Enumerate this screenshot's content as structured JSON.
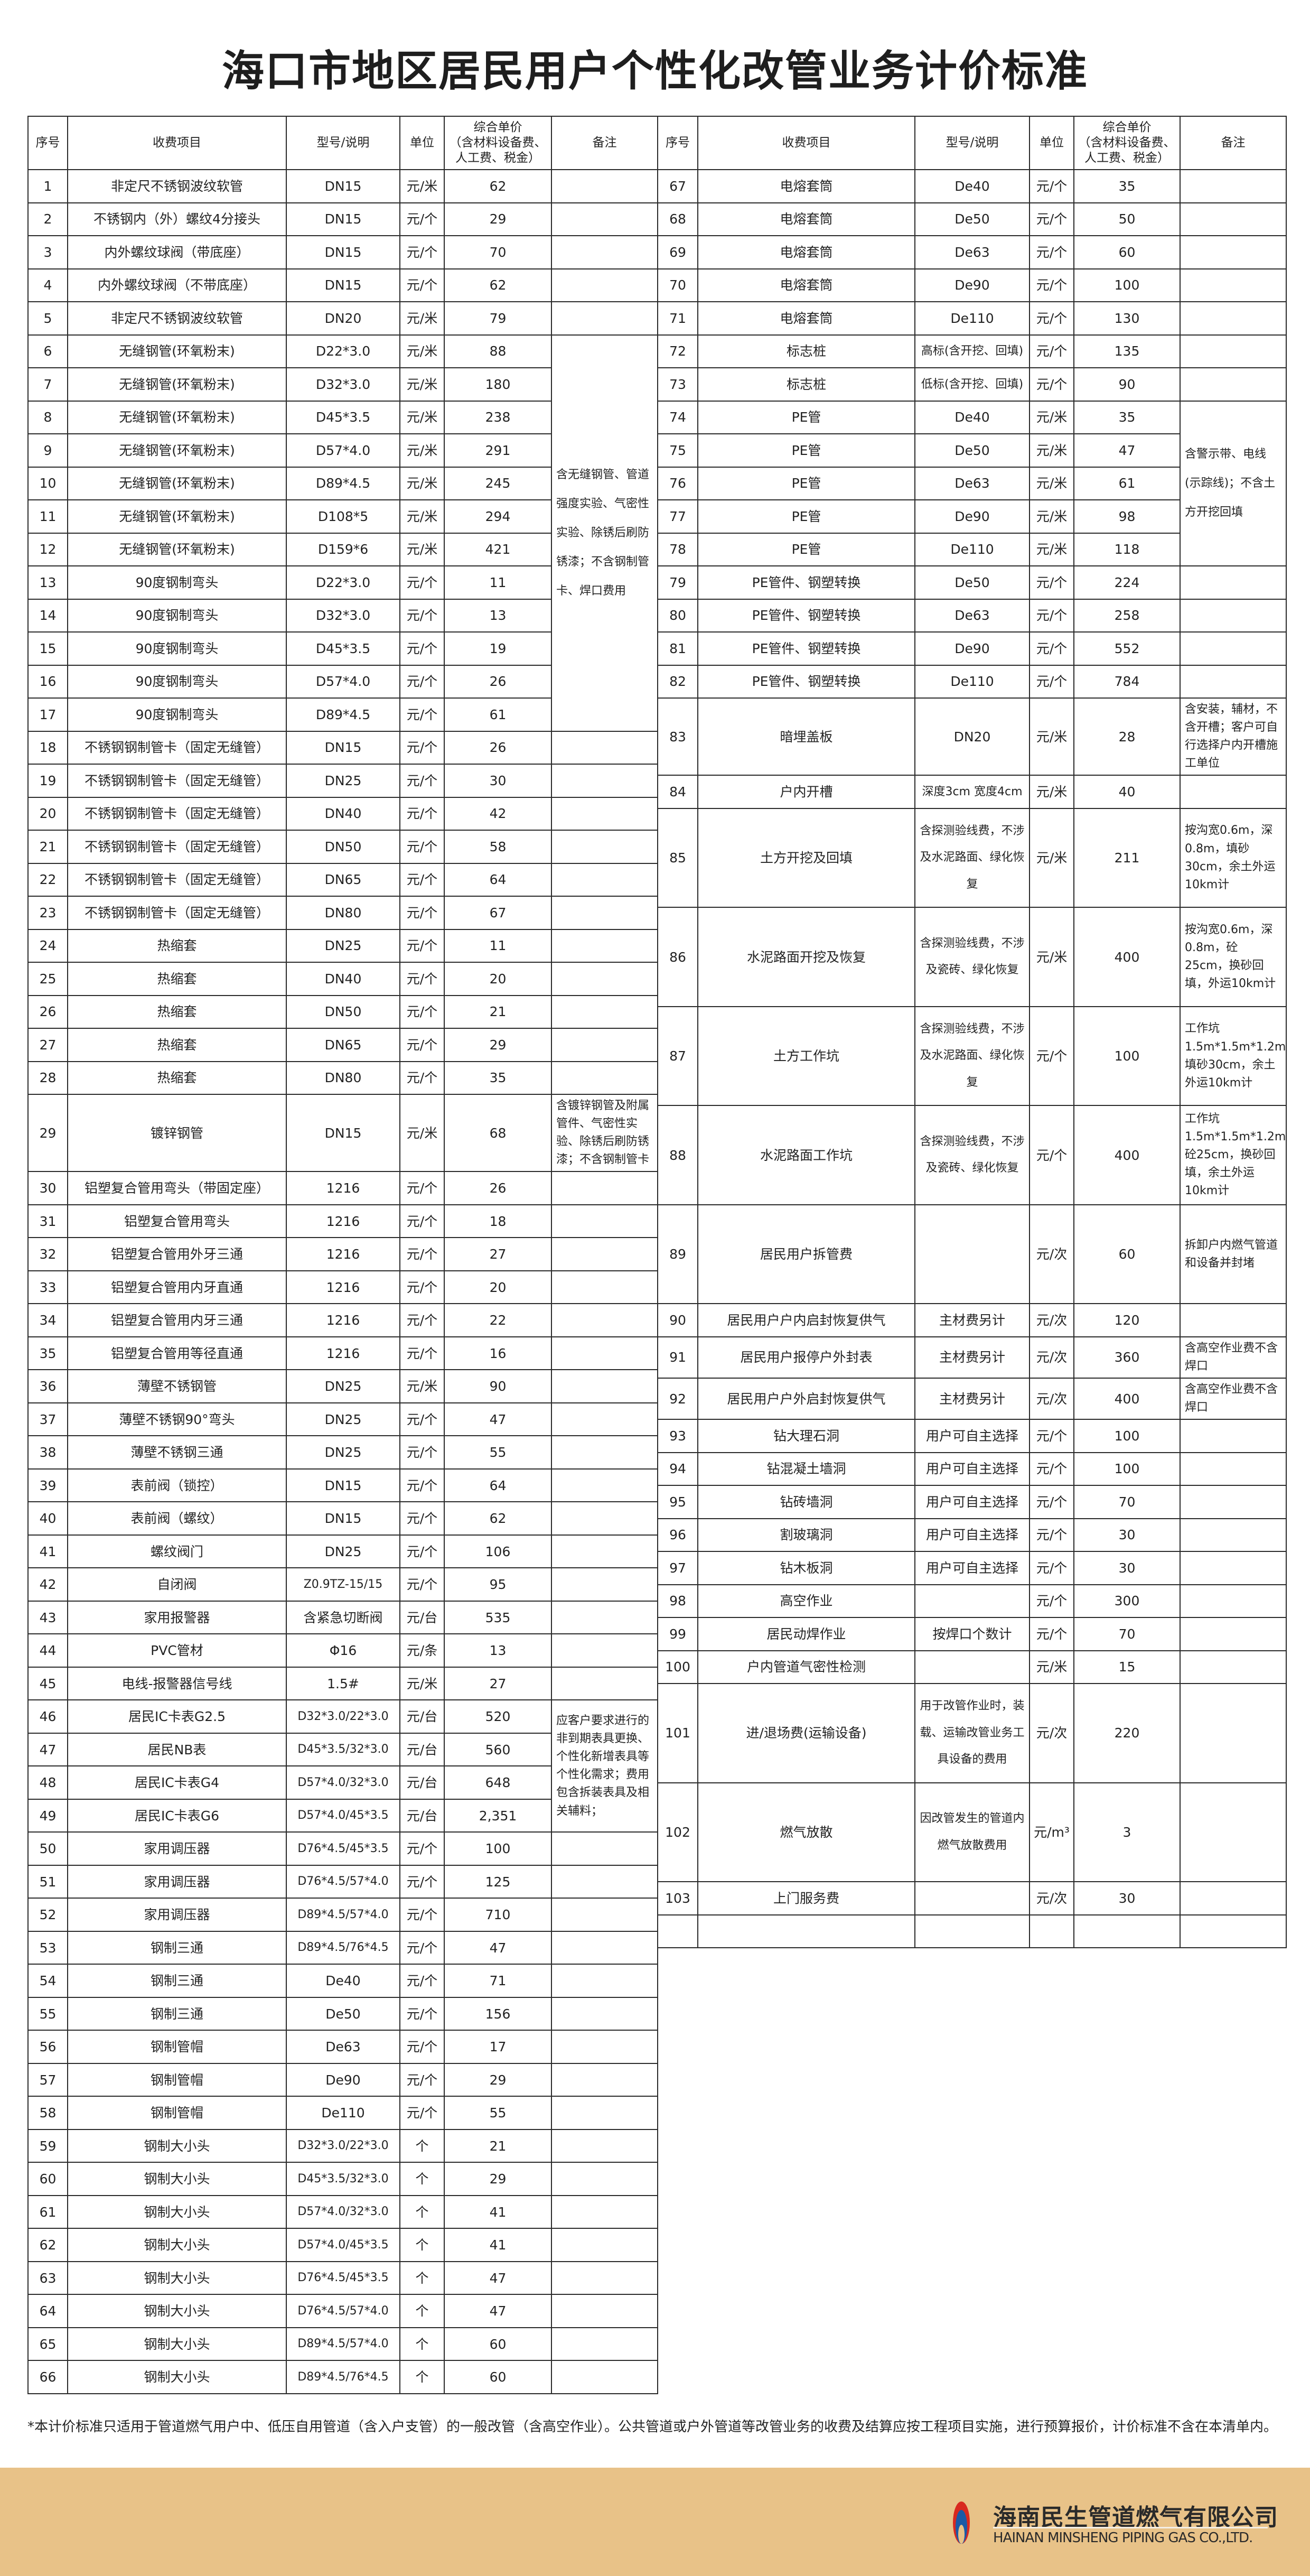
{
  "title": "海口市地区居民用户个性化改管业务计价标准",
  "header": {
    "no": "序号",
    "item": "收费项目",
    "spec": "型号/说明",
    "unit": "单位",
    "price": "综合单价\n（含材料设备费、\n人工费、税金）",
    "remark": "备注"
  },
  "left": {
    "rows": [
      {
        "no": "1",
        "item": "非定尺不锈钢波纹软管",
        "spec": "DN15",
        "unit": "元/米",
        "price": "62"
      },
      {
        "no": "2",
        "item": "不锈钢内（外）螺纹4分接头",
        "spec": "DN15",
        "unit": "元/个",
        "price": "29"
      },
      {
        "no": "3",
        "item": "内外螺纹球阀（带底座）",
        "spec": "DN15",
        "unit": "元/个",
        "price": "70"
      },
      {
        "no": "4",
        "item": "内外螺纹球阀（不带底座）",
        "spec": "DN15",
        "unit": "元/个",
        "price": "62"
      },
      {
        "no": "5",
        "item": "非定尺不锈钢波纹软管",
        "spec": "DN20",
        "unit": "元/米",
        "price": "79"
      },
      {
        "no": "6",
        "item": "无缝钢管(环氧粉末)",
        "spec": "D22*3.0",
        "unit": "元/米",
        "price": "88",
        "remark": "含无缝钢管、管道强度实验、气密性实验、除锈后刷防锈漆；不含钢制管卡、焊口费用"
      },
      {
        "no": "7",
        "item": "无缝钢管(环氧粉末)",
        "spec": "D32*3.0",
        "unit": "元/米",
        "price": "180"
      },
      {
        "no": "8",
        "item": "无缝钢管(环氧粉末)",
        "spec": "D45*3.5",
        "unit": "元/米",
        "price": "238"
      },
      {
        "no": "9",
        "item": "无缝钢管(环氧粉末)",
        "spec": "D57*4.0",
        "unit": "元/米",
        "price": "291"
      },
      {
        "no": "10",
        "item": "无缝钢管(环氧粉末)",
        "spec": "D89*4.5",
        "unit": "元/米",
        "price": "245"
      },
      {
        "no": "11",
        "item": "无缝钢管(环氧粉末)",
        "spec": "D108*5",
        "unit": "元/米",
        "price": "294"
      },
      {
        "no": "12",
        "item": "无缝钢管(环氧粉末)",
        "spec": "D159*6",
        "unit": "元/米",
        "price": "421"
      },
      {
        "no": "13",
        "item": "90度钢制弯头",
        "spec": "D22*3.0",
        "unit": "元/个",
        "price": "11"
      },
      {
        "no": "14",
        "item": "90度钢制弯头",
        "spec": "D32*3.0",
        "unit": "元/个",
        "price": "13"
      },
      {
        "no": "15",
        "item": "90度钢制弯头",
        "spec": "D45*3.5",
        "unit": "元/个",
        "price": "19"
      },
      {
        "no": "16",
        "item": "90度钢制弯头",
        "spec": "D57*4.0",
        "unit": "元/个",
        "price": "26"
      },
      {
        "no": "17",
        "item": "90度钢制弯头",
        "spec": "D89*4.5",
        "unit": "元/个",
        "price": "61"
      },
      {
        "no": "18",
        "item": "不锈钢钢制管卡（固定无缝管）",
        "spec": "DN15",
        "unit": "元/个",
        "price": "26"
      },
      {
        "no": "19",
        "item": "不锈钢钢制管卡（固定无缝管）",
        "spec": "DN25",
        "unit": "元/个",
        "price": "30"
      },
      {
        "no": "20",
        "item": "不锈钢钢制管卡（固定无缝管）",
        "spec": "DN40",
        "unit": "元/个",
        "price": "42"
      },
      {
        "no": "21",
        "item": "不锈钢钢制管卡（固定无缝管）",
        "spec": "DN50",
        "unit": "元/个",
        "price": "58"
      },
      {
        "no": "22",
        "item": "不锈钢钢制管卡（固定无缝管）",
        "spec": "DN65",
        "unit": "元/个",
        "price": "64"
      },
      {
        "no": "23",
        "item": "不锈钢钢制管卡（固定无缝管）",
        "spec": "DN80",
        "unit": "元/个",
        "price": "67"
      },
      {
        "no": "24",
        "item": "热缩套",
        "spec": "DN25",
        "unit": "元/个",
        "price": "11"
      },
      {
        "no": "25",
        "item": "热缩套",
        "spec": "DN40",
        "unit": "元/个",
        "price": "20"
      },
      {
        "no": "26",
        "item": "热缩套",
        "spec": "DN50",
        "unit": "元/个",
        "price": "21"
      },
      {
        "no": "27",
        "item": "热缩套",
        "spec": "DN65",
        "unit": "元/个",
        "price": "29"
      },
      {
        "no": "28",
        "item": "热缩套",
        "spec": "DN80",
        "unit": "元/个",
        "price": "35"
      },
      {
        "no": "29",
        "item": "镀锌钢管",
        "spec": "DN15",
        "unit": "元/米",
        "price": "68",
        "remark": "含镀锌钢管及附属管件、气密性实验、除锈后刷防锈漆；不含钢制管卡"
      },
      {
        "no": "30",
        "item": "铝塑复合管用弯头（带固定座）",
        "spec": "1216",
        "unit": "元/个",
        "price": "26"
      },
      {
        "no": "31",
        "item": "铝塑复合管用弯头",
        "spec": "1216",
        "unit": "元/个",
        "price": "18"
      },
      {
        "no": "32",
        "item": "铝塑复合管用外牙三通",
        "spec": "1216",
        "unit": "元/个",
        "price": "27"
      },
      {
        "no": "33",
        "item": "铝塑复合管用内牙直通",
        "spec": "1216",
        "unit": "元/个",
        "price": "20"
      },
      {
        "no": "34",
        "item": "铝塑复合管用内牙三通",
        "spec": "1216",
        "unit": "元/个",
        "price": "22"
      },
      {
        "no": "35",
        "item": "铝塑复合管用等径直通",
        "spec": "1216",
        "unit": "元/个",
        "price": "16"
      },
      {
        "no": "36",
        "item": "薄壁不锈钢管",
        "spec": "DN25",
        "unit": "元/米",
        "price": "90"
      },
      {
        "no": "37",
        "item": "薄壁不锈钢90°弯头",
        "spec": "DN25",
        "unit": "元/个",
        "price": "47"
      },
      {
        "no": "38",
        "item": "薄壁不锈钢三通",
        "spec": "DN25",
        "unit": "元/个",
        "price": "55"
      },
      {
        "no": "39",
        "item": "表前阀（锁控）",
        "spec": "DN15",
        "unit": "元/个",
        "price": "64"
      },
      {
        "no": "40",
        "item": "表前阀（螺纹）",
        "spec": "DN15",
        "unit": "元/个",
        "price": "62"
      },
      {
        "no": "41",
        "item": "螺纹阀门",
        "spec": "DN25",
        "unit": "元/个",
        "price": "106"
      },
      {
        "no": "42",
        "item": "自闭阀",
        "spec": "Z0.9TZ-15/15",
        "unit": "元/个",
        "price": "95"
      },
      {
        "no": "43",
        "item": "家用报警器",
        "spec": "含紧急切断阀",
        "unit": "元/台",
        "price": "535"
      },
      {
        "no": "44",
        "item": "PVC管材",
        "spec": "Φ16",
        "unit": "元/条",
        "price": "13"
      },
      {
        "no": "45",
        "item": "电线-报警器信号线",
        "spec": "1.5#",
        "unit": "元/米",
        "price": "27"
      },
      {
        "no": "46",
        "item": "居民IC卡表G2.5",
        "spec": "D32*3.0/22*3.0",
        "unit": "元/台",
        "price": "520",
        "remark": "应客户要求进行的非到期表具更换、个性化新增表具等个性化需求；费用包含拆装表具及相关辅料；"
      },
      {
        "no": "47",
        "item": "居民NB表",
        "spec": "D45*3.5/32*3.0",
        "unit": "元/台",
        "price": "560"
      },
      {
        "no": "48",
        "item": "居民IC卡表G4",
        "spec": "D57*4.0/32*3.0",
        "unit": "元/台",
        "price": "648"
      },
      {
        "no": "49",
        "item": "居民IC卡表G6",
        "spec": "D57*4.0/45*3.5",
        "unit": "元/台",
        "price": "2,351"
      },
      {
        "no": "50",
        "item": "家用调压器",
        "spec": "D76*4.5/45*3.5",
        "unit": "元/个",
        "price": "100"
      },
      {
        "no": "51",
        "item": "家用调压器",
        "spec": "D76*4.5/57*4.0",
        "unit": "元/个",
        "price": "125"
      },
      {
        "no": "52",
        "item": "家用调压器",
        "spec": "D89*4.5/57*4.0",
        "unit": "元/个",
        "price": "710"
      },
      {
        "no": "53",
        "item": "钢制三通",
        "spec": "D89*4.5/76*4.5",
        "unit": "元/个",
        "price": "47"
      },
      {
        "no": "54",
        "item": "钢制三通",
        "spec": "De40",
        "unit": "元/个",
        "price": "71"
      },
      {
        "no": "55",
        "item": "钢制三通",
        "spec": "De50",
        "unit": "元/个",
        "price": "156"
      },
      {
        "no": "56",
        "item": "钢制管帽",
        "spec": "De63",
        "unit": "元/个",
        "price": "17"
      },
      {
        "no": "57",
        "item": "钢制管帽",
        "spec": "De90",
        "unit": "元/个",
        "price": "29"
      },
      {
        "no": "58",
        "item": "钢制管帽",
        "spec": "De110",
        "unit": "元/个",
        "price": "55"
      },
      {
        "no": "59",
        "item": "钢制大小头",
        "spec": "D32*3.0/22*3.0",
        "unit": "个",
        "price": "21"
      },
      {
        "no": "60",
        "item": "钢制大小头",
        "spec": "D45*3.5/32*3.0",
        "unit": "个",
        "price": "29"
      },
      {
        "no": "61",
        "item": "钢制大小头",
        "spec": "D57*4.0/32*3.0",
        "unit": "个",
        "price": "41"
      },
      {
        "no": "62",
        "item": "钢制大小头",
        "spec": "D57*4.0/45*3.5",
        "unit": "个",
        "price": "41"
      },
      {
        "no": "63",
        "item": "钢制大小头",
        "spec": "D76*4.5/45*3.5",
        "unit": "个",
        "price": "47"
      },
      {
        "no": "64",
        "item": "钢制大小头",
        "spec": "D76*4.5/57*4.0",
        "unit": "个",
        "price": "47"
      },
      {
        "no": "65",
        "item": "钢制大小头",
        "spec": "D89*4.5/57*4.0",
        "unit": "个",
        "price": "60"
      },
      {
        "no": "66",
        "item": "钢制大小头",
        "spec": "D89*4.5/76*4.5",
        "unit": "个",
        "price": "60"
      }
    ]
  },
  "right": {
    "rows": [
      {
        "no": "67",
        "item": "电熔套筒",
        "spec": "De40",
        "unit": "元/个",
        "price": "35"
      },
      {
        "no": "68",
        "item": "电熔套筒",
        "spec": "De50",
        "unit": "元/个",
        "price": "50"
      },
      {
        "no": "69",
        "item": "电熔套筒",
        "spec": "De63",
        "unit": "元/个",
        "price": "60"
      },
      {
        "no": "70",
        "item": "电熔套筒",
        "spec": "De90",
        "unit": "元/个",
        "price": "100"
      },
      {
        "no": "71",
        "item": "电熔套筒",
        "spec": "De110",
        "unit": "元/个",
        "price": "130"
      },
      {
        "no": "72",
        "item": "标志桩",
        "spec": "高标(含开挖、回填)",
        "unit": "元/个",
        "price": "135"
      },
      {
        "no": "73",
        "item": "标志桩",
        "spec": "低标(含开挖、回填)",
        "unit": "元/个",
        "price": "90"
      },
      {
        "no": "74",
        "item": "PE管",
        "spec": "De40",
        "unit": "元/米",
        "price": "35",
        "remark": "含警示带、电线(示踪线)；不含土方开挖回填"
      },
      {
        "no": "75",
        "item": "PE管",
        "spec": "De50",
        "unit": "元/米",
        "price": "47"
      },
      {
        "no": "76",
        "item": "PE管",
        "spec": "De63",
        "unit": "元/米",
        "price": "61"
      },
      {
        "no": "77",
        "item": "PE管",
        "spec": "De90",
        "unit": "元/米",
        "price": "98"
      },
      {
        "no": "78",
        "item": "PE管",
        "spec": "De110",
        "unit": "元/米",
        "price": "118"
      },
      {
        "no": "79",
        "item": "PE管件、钢塑转换",
        "spec": "De50",
        "unit": "元/个",
        "price": "224"
      },
      {
        "no": "80",
        "item": "PE管件、钢塑转换",
        "spec": "De63",
        "unit": "元/个",
        "price": "258"
      },
      {
        "no": "81",
        "item": "PE管件、钢塑转换",
        "spec": "De90",
        "unit": "元/个",
        "price": "552"
      },
      {
        "no": "82",
        "item": "PE管件、钢塑转换",
        "spec": "De110",
        "unit": "元/个",
        "price": "784"
      },
      {
        "no": "83",
        "item": "暗埋盖板",
        "spec": "DN20",
        "unit": "元/米",
        "price": "28",
        "remark": "含安装，辅材，不含开槽；客户可自行选择户内开槽施工单位"
      },
      {
        "no": "84",
        "item": "户内开槽",
        "spec": "深度3cm 宽度4cm",
        "unit": "元/米",
        "price": "40"
      },
      {
        "no": "85",
        "item": "土方开挖及回填",
        "spec": "含探测验线费，不涉及水泥路面、绿化恢复",
        "unit": "元/米",
        "price": "211",
        "remark": "按沟宽0.6m，深0.8m，填砂30cm，余土外运10km计"
      },
      {
        "no": "86",
        "item": "水泥路面开挖及恢复",
        "spec": "含探测验线费，不涉及瓷砖、绿化恢复",
        "unit": "元/米",
        "price": "400",
        "remark": "按沟宽0.6m，深0.8m，砼25cm，换砂回填，外运10km计"
      },
      {
        "no": "87",
        "item": "土方工作坑",
        "spec": "含探测验线费，不涉及水泥路面、绿化恢复",
        "unit": "元/个",
        "price": "100",
        "remark": "工作坑1.5m*1.5m*1.2m，填砂30cm，余土外运10km计"
      },
      {
        "no": "88",
        "item": "水泥路面工作坑",
        "spec": "含探测验线费，不涉及瓷砖、绿化恢复",
        "unit": "元/个",
        "price": "400",
        "remark": "工作坑1.5m*1.5m*1.2m，砼25cm，换砂回填，余土外运10km计"
      },
      {
        "no": "89",
        "item": "居民用户拆管费",
        "spec": "",
        "unit": "元/次",
        "price": "60",
        "remark": "拆卸户内燃气管道和设备并封堵"
      },
      {
        "no": "90",
        "item": "居民用户户内启封恢复供气",
        "spec": "主材费另计",
        "unit": "元/次",
        "price": "120"
      },
      {
        "no": "91",
        "item": "居民用户报停户外封表",
        "spec": "主材费另计",
        "unit": "元/次",
        "price": "360",
        "remark": "含高空作业费不含焊口"
      },
      {
        "no": "92",
        "item": "居民用户户外启封恢复供气",
        "spec": "主材费另计",
        "unit": "元/次",
        "price": "400",
        "remark": "含高空作业费不含焊口"
      },
      {
        "no": "93",
        "item": "钻大理石洞",
        "spec": "用户可自主选择",
        "unit": "元/个",
        "price": "100"
      },
      {
        "no": "94",
        "item": "钻混凝土墙洞",
        "spec": "用户可自主选择",
        "unit": "元/个",
        "price": "100"
      },
      {
        "no": "95",
        "item": "钻砖墙洞",
        "spec": "用户可自主选择",
        "unit": "元/个",
        "price": "70"
      },
      {
        "no": "96",
        "item": "割玻璃洞",
        "spec": "用户可自主选择",
        "unit": "元/个",
        "price": "30"
      },
      {
        "no": "97",
        "item": "钻木板洞",
        "spec": "用户可自主选择",
        "unit": "元/个",
        "price": "30"
      },
      {
        "no": "98",
        "item": "高空作业",
        "spec": "",
        "unit": "元/个",
        "price": "300"
      },
      {
        "no": "99",
        "item": "居民动焊作业",
        "spec": "按焊口个数计",
        "unit": "元/个",
        "price": "70"
      },
      {
        "no": "100",
        "item": "户内管道气密性检测",
        "spec": "",
        "unit": "元/米",
        "price": "15"
      },
      {
        "no": "101",
        "item": "进/退场费(运输设备)",
        "spec": "用于改管作业时，装载、运输改管业务工具设备的费用",
        "unit": "元/次",
        "price": "220"
      },
      {
        "no": "102",
        "item": "燃气放散",
        "spec": "因改管发生的管道内燃气放散费用",
        "unit": "元/m³",
        "price": "3"
      },
      {
        "no": "103",
        "item": "上门服务费",
        "spec": "",
        "unit": "元/次",
        "price": "30"
      },
      {
        "no": "",
        "item": "",
        "spec": "",
        "unit": "",
        "price": ""
      }
    ]
  },
  "footnote": "*本计价标准只适用于管道燃气用户中、低压自用管道（含入户支管）的一般改管（含高空作业）。公共管道或户外管道等改管业务的收费及结算应按工程项目实施，进行预算报价，计价标准不含在本清单内。",
  "company": {
    "name_cn": "海南民生管道燃气有限公司",
    "name_en": "HAINAN MINSHENG PIPING GAS CO.,LTD.",
    "logo_colors": {
      "red": "#d8291f",
      "blue": "#1b5aa6"
    }
  },
  "colors": {
    "footer_band": "#e8c288",
    "border": "#2b2b2b"
  }
}
